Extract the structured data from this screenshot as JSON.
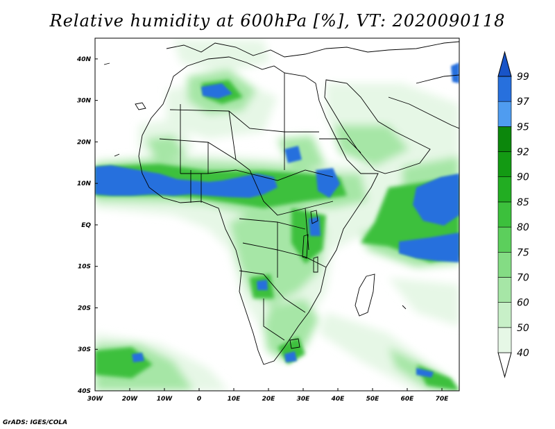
{
  "title": "Relative humidity at 600hPa [%], VT: 2020090118",
  "credit": "GrADS: IGES/COLA",
  "map": {
    "lon_range": [
      -30,
      75
    ],
    "lat_range": [
      -40,
      45
    ],
    "lon_ticks": [
      {
        "value": -30,
        "label": "30W"
      },
      {
        "value": -20,
        "label": "20W"
      },
      {
        "value": -10,
        "label": "10W"
      },
      {
        "value": 0,
        "label": "0"
      },
      {
        "value": 10,
        "label": "10E"
      },
      {
        "value": 20,
        "label": "20E"
      },
      {
        "value": 30,
        "label": "30E"
      },
      {
        "value": 40,
        "label": "40E"
      },
      {
        "value": 50,
        "label": "50E"
      },
      {
        "value": 60,
        "label": "60E"
      },
      {
        "value": 70,
        "label": "70E"
      }
    ],
    "lat_ticks": [
      {
        "value": 40,
        "label": "40N"
      },
      {
        "value": 30,
        "label": "30N"
      },
      {
        "value": 20,
        "label": "20N"
      },
      {
        "value": 10,
        "label": "10N"
      },
      {
        "value": 0,
        "label": "EQ"
      },
      {
        "value": -10,
        "label": "10S"
      },
      {
        "value": -20,
        "label": "20S"
      },
      {
        "value": -30,
        "label": "30S"
      },
      {
        "value": -40,
        "label": "40S"
      }
    ]
  },
  "colorbar": {
    "levels": [
      "40",
      "50",
      "60",
      "70",
      "75",
      "80",
      "85",
      "90",
      "92",
      "95",
      "97",
      "99"
    ],
    "colors": [
      "#ffffff",
      "#e6f7e6",
      "#c8f0c8",
      "#a6e6a6",
      "#84dc84",
      "#5ccf5c",
      "#3cc03c",
      "#22ad22",
      "#139a13",
      "#0c870c",
      "#4f9cf0",
      "#2770dd",
      "#1854c8"
    ]
  }
}
